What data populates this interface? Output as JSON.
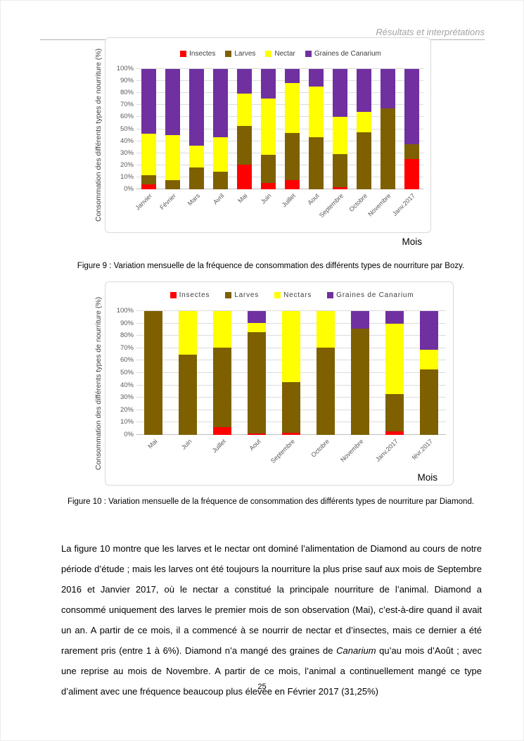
{
  "page": {
    "header": "Résultats et interprétations",
    "page_number": "25"
  },
  "captions": {
    "figure9": "Figure 9 : Variation mensuelle de la fréquence de consommation des différents types de nourriture par Bozy.",
    "figure10": "Figure 10 : Variation mensuelle de la fréquence de consommation des différents types de nourriture par Diamond."
  },
  "paragraph": {
    "part1": "La figure 10 montre que les larves et le nectar ont dominé l’alimentation de Diamond au cours de notre période d’étude ; mais les larves ont été toujours la nourriture la plus prise sauf aux mois de Septembre 2016 et Janvier 2017, où le nectar a constitué la principale nourriture de l’animal. Diamond a consommé uniquement des larves le premier mois de son observation (Mai), c’est-à-dire quand il avait un an. A partir de ce mois, il a commencé à se nourrir de nectar et d’insectes, mais ce dernier a été rarement pris (entre 1 à 6%). Diamond n’a mangé des graines de ",
    "italic": "Canarium",
    "part2": " qu’au mois d’Août ; avec une reprise au mois de Novembre. A partir de ce mois, l’animal a continuellement mangé ce type d’aliment avec une fréquence beaucoup plus élevée en Février 2017 (31,25%)"
  },
  "chart_data": [
    {
      "type": "bar",
      "stacked": true,
      "subject": "Bozy",
      "title": "",
      "ylabel": "Consommation des différents types de nourriture (%)",
      "xlabel": "Mois",
      "ylim": [
        0,
        100
      ],
      "grid": true,
      "legend_position": "top",
      "yticks": [
        "0%",
        "10%",
        "20%",
        "30%",
        "40%",
        "50%",
        "60%",
        "70%",
        "80%",
        "90%",
        "100%"
      ],
      "categories": [
        "Janvier",
        "Février",
        "Mars",
        "Avril",
        "Mai",
        "Juin",
        "Juillet",
        "Aout",
        "Septembre",
        "Octobre",
        "Novembre",
        "Janv.2017"
      ],
      "series": [
        {
          "name": "Insectes",
          "color": "#FF0000",
          "values": [
            4,
            0,
            0,
            0,
            20.5,
            5,
            7.5,
            0,
            2,
            0,
            0,
            25
          ]
        },
        {
          "name": "Larves",
          "color": "#7F6000",
          "values": [
            8,
            7.5,
            18,
            14.5,
            32,
            23.5,
            39.5,
            43.5,
            27.5,
            47.5,
            67,
            12.5
          ]
        },
        {
          "name": "Nectar",
          "color": "#FFFF00",
          "values": [
            34,
            37.5,
            18.5,
            28.5,
            27,
            47,
            41.5,
            42,
            30.5,
            17,
            0,
            0
          ]
        },
        {
          "name": "Graines de Canarium",
          "color": "#7030A0",
          "values": [
            54,
            55,
            63.5,
            57,
            20.5,
            24.5,
            11.5,
            14.5,
            40,
            35.5,
            33,
            62.5
          ]
        }
      ]
    },
    {
      "type": "bar",
      "stacked": true,
      "subject": "Diamond",
      "title": "",
      "ylabel": "Consommation des différents types de nourriture (%)",
      "xlabel": "Mois",
      "ylim": [
        0,
        100
      ],
      "grid": true,
      "legend_position": "top",
      "yticks": [
        "0%",
        "10%",
        "20%",
        "30%",
        "40%",
        "50%",
        "60%",
        "70%",
        "80%",
        "90%",
        "100%"
      ],
      "categories": [
        "Mai",
        "Juin",
        "Juillet",
        "Aout",
        "Septembre",
        "Octobre",
        "Novembre",
        "Janv.2017",
        "févr.2017"
      ],
      "series": [
        {
          "name": "Insectes",
          "color": "#FF0000",
          "values": [
            0,
            0,
            6,
            1,
            1.5,
            0,
            0,
            3,
            0
          ]
        },
        {
          "name": "Larves",
          "color": "#7F6000",
          "values": [
            100,
            65,
            64.5,
            82,
            41,
            70.5,
            86,
            30,
            53
          ]
        },
        {
          "name": "Nectars",
          "color": "#FFFF00",
          "values": [
            0,
            35,
            29.5,
            7.5,
            57.5,
            29.5,
            0,
            57,
            15.75
          ]
        },
        {
          "name": "Graines de Canarium",
          "color": "#7030A0",
          "values": [
            0,
            0,
            0,
            9.5,
            0,
            0,
            14,
            10,
            31.25
          ]
        }
      ]
    }
  ]
}
